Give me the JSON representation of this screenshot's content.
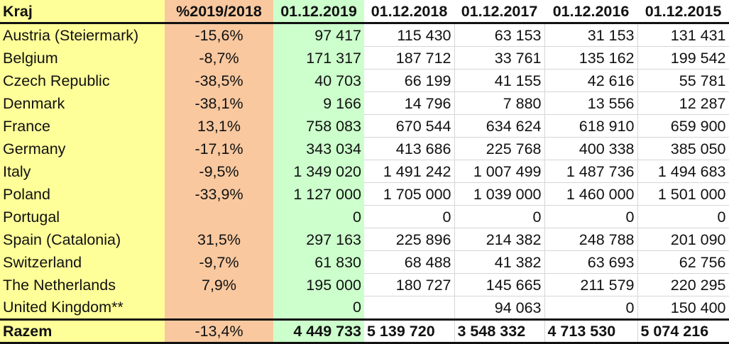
{
  "colors": {
    "name_col": "#ffff99",
    "pct_col": "#f9c89f",
    "current_col": "#ccffcc"
  },
  "headers": [
    "Kraj",
    "%2019/2018",
    "01.12.2019",
    "01.12.2018",
    "01.12.2017",
    "01.12.2016",
    "01.12.2015"
  ],
  "rows": [
    [
      "Austria (Steiermark)",
      "-15,6%",
      "97 417",
      "115 430",
      "63 153",
      "31 153",
      "131 431"
    ],
    [
      "Belgium",
      "-8,7%",
      "171 317",
      "187 712",
      "33 761",
      "135 162",
      "199 542"
    ],
    [
      "Czech Republic",
      "-38,5%",
      "40 703",
      "66 199",
      "41 155",
      "42 616",
      "55 781"
    ],
    [
      "Denmark",
      "-38,1%",
      "9 166",
      "14 796",
      "7 880",
      "13 556",
      "12 287"
    ],
    [
      "France",
      "13,1%",
      "758 083",
      "670 544",
      "634 624",
      "618 910",
      "659 900"
    ],
    [
      "Germany",
      "-17,1%",
      "343 034",
      "413 686",
      "225 768",
      "400 338",
      "385 050"
    ],
    [
      "Italy",
      "-9,5%",
      "1 349 020",
      "1 491 242",
      "1 007 499",
      "1 487 736",
      "1 494 683"
    ],
    [
      "Poland",
      "-33,9%",
      "1 127 000",
      "1 705 000",
      "1 039 000",
      "1 460 000",
      "1 501 000"
    ],
    [
      "Portugal",
      "",
      "0",
      "0",
      "0",
      "0",
      "0"
    ],
    [
      "Spain (Catalonia)",
      "31,5%",
      "297 163",
      "225 896",
      "214 382",
      "248 788",
      "201 090"
    ],
    [
      "Switzerland",
      "-9,7%",
      "61 830",
      "68 488",
      "41 382",
      "63 693",
      "62 756"
    ],
    [
      "The Netherlands",
      "7,9%",
      "195 000",
      "180 727",
      "145 665",
      "211 579",
      "220 295"
    ],
    [
      "United Kingdom**",
      "",
      "0",
      "",
      "94 063",
      "0",
      "150 400"
    ]
  ],
  "total": [
    "Razem",
    "-13,4%",
    "4 449 733",
    "5 139 720",
    "3 548 332",
    "4 713 530",
    "5 074 216"
  ]
}
